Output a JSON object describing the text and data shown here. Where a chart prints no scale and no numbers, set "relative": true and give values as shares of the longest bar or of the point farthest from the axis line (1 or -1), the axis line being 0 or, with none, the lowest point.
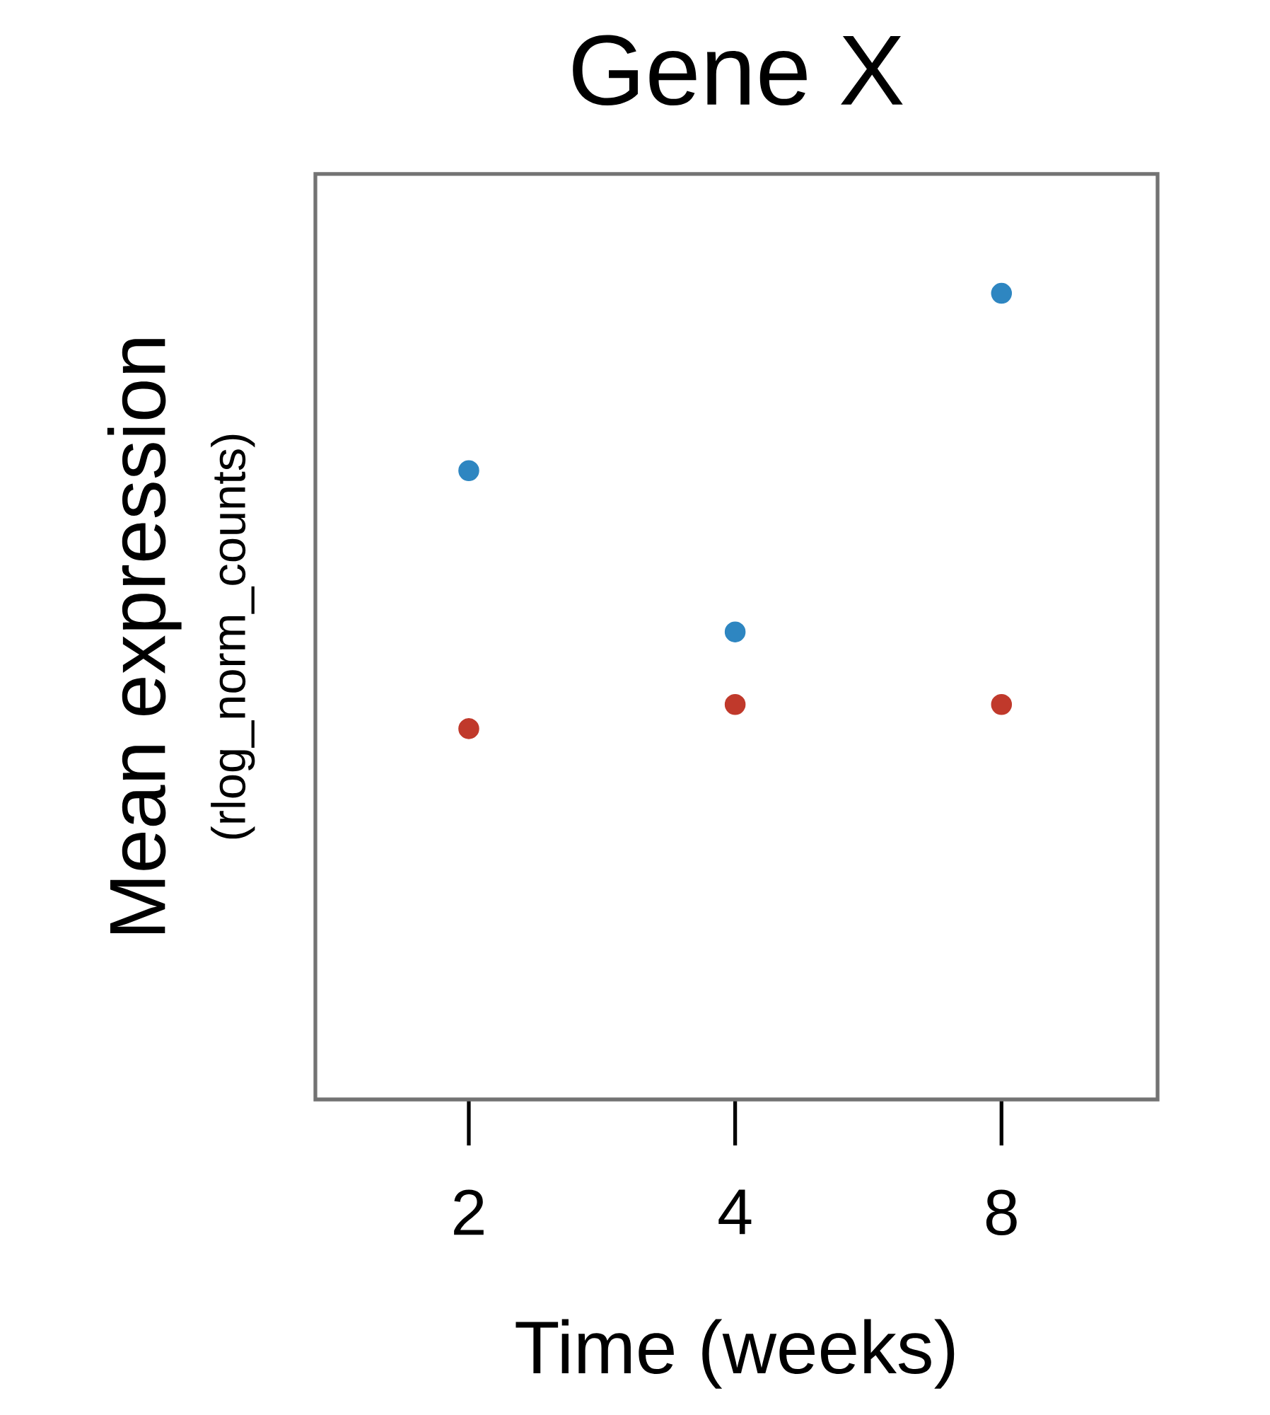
{
  "chart_data": {
    "type": "scatter",
    "title": "Gene X",
    "xlabel": "Time (weeks)",
    "ylabel": "Mean expression",
    "annotations": [
      "(rlog_norm_counts)"
    ],
    "categories": [
      "2",
      "4",
      "8"
    ],
    "relative": true,
    "series": [
      {
        "color": "#2e86c1",
        "values": [
          0.78,
          0.58,
          1
        ]
      },
      {
        "color": "#c0392b",
        "values": [
          0.46,
          0.49,
          0.49
        ]
      }
    ]
  }
}
